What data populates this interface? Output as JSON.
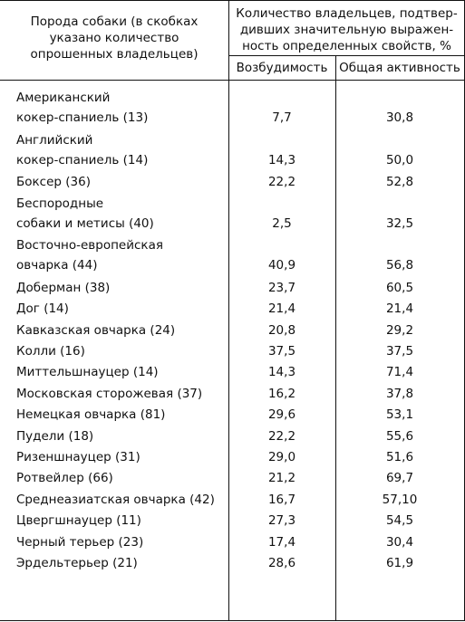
{
  "header": {
    "breed_col_lines": [
      "Порода собаки (в скобках",
      "указано количество",
      "опрошенных владельцев)"
    ],
    "owners_col_lines": [
      "Количество владельцев, подтвер-",
      "дивших значительную выражен-",
      "ность определенных свойств, %"
    ],
    "col_excitability": "Возбудимость",
    "col_activity": "Общая активность"
  },
  "rows": [
    {
      "name_lines": [
        "Американский",
        "кокер-спаниель (13)"
      ],
      "excitability": "7,7",
      "activity": "30,8"
    },
    {
      "name_lines": [
        "Английский",
        "кокер-спаниель (14)"
      ],
      "excitability": "14,3",
      "activity": "50,0"
    },
    {
      "name_lines": [
        "Боксер (36)"
      ],
      "excitability": "22,2",
      "activity": "52,8"
    },
    {
      "name_lines": [
        "Беспородные",
        "собаки и метисы (40)"
      ],
      "excitability": "2,5",
      "activity": "32,5"
    },
    {
      "name_lines": [
        "Восточно-европейская",
        "овчарка (44)"
      ],
      "excitability": "40,9",
      "activity": "56,8"
    },
    {
      "name_lines": [
        "Доберман (38)"
      ],
      "excitability": "23,7",
      "activity": "60,5"
    },
    {
      "name_lines": [
        "Дог (14)"
      ],
      "excitability": "21,4",
      "activity": "21,4"
    },
    {
      "name_lines": [
        "Кавказская овчарка (24)"
      ],
      "excitability": "20,8",
      "activity": "29,2"
    },
    {
      "name_lines": [
        "Колли (16)"
      ],
      "excitability": "37,5",
      "activity": "37,5"
    },
    {
      "name_lines": [
        "Миттельшнауцер (14)"
      ],
      "excitability": "14,3",
      "activity": "71,4"
    },
    {
      "name_lines": [
        "Московская сторожевая (37)"
      ],
      "excitability": "16,2",
      "activity": "37,8"
    },
    {
      "name_lines": [
        "Немецкая овчарка (81)"
      ],
      "excitability": "29,6",
      "activity": "53,1"
    },
    {
      "name_lines": [
        "Пудели (18)"
      ],
      "excitability": "22,2",
      "activity": "55,6"
    },
    {
      "name_lines": [
        "Ризеншнауцер (31)"
      ],
      "excitability": "29,0",
      "activity": "51,6"
    },
    {
      "name_lines": [
        "Ротвейлер (66)"
      ],
      "excitability": "21,2",
      "activity": "69,7"
    },
    {
      "name_lines": [
        "Среднеазиатская овчарка (42)"
      ],
      "excitability": "16,7",
      "activity": "57,10"
    },
    {
      "name_lines": [
        "Цвергшнауцер (11)"
      ],
      "excitability": "27,3",
      "activity": "54,5"
    },
    {
      "name_lines": [
        "Черный терьер (23)"
      ],
      "excitability": "17,4",
      "activity": "30,4"
    },
    {
      "name_lines": [
        "Эрдельтерьер (21)"
      ],
      "excitability": "28,6",
      "activity": "61,9"
    }
  ]
}
